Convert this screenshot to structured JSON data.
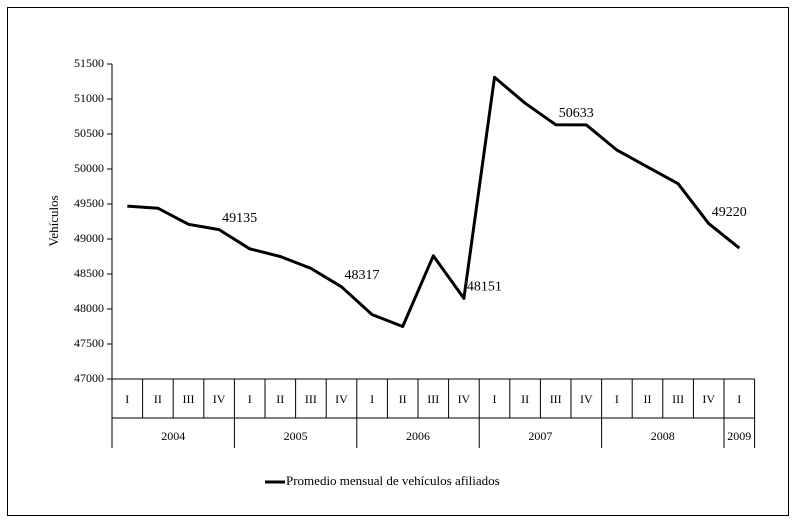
{
  "chart_data": {
    "type": "line",
    "y_label": "Vehículos",
    "groups": [
      {
        "label": "2004",
        "categories": [
          "I",
          "II",
          "III",
          "IV"
        ]
      },
      {
        "label": "2005",
        "categories": [
          "I",
          "II",
          "III",
          "IV"
        ]
      },
      {
        "label": "2006",
        "categories": [
          "I",
          "II",
          "III",
          "IV"
        ]
      },
      {
        "label": "2007",
        "categories": [
          "I",
          "II",
          "III",
          "IV"
        ]
      },
      {
        "label": "2008",
        "categories": [
          "I",
          "II",
          "III",
          "IV"
        ]
      },
      {
        "label": "2009",
        "categories": [
          "I"
        ]
      }
    ],
    "series": [
      {
        "name": "Promedio mensual de vehículos afiliados",
        "color": "#000000",
        "values": [
          49470,
          49440,
          49210,
          49135,
          48860,
          48750,
          48580,
          48317,
          47920,
          47750,
          48760,
          48151,
          51310,
          50940,
          50633,
          50630,
          50270,
          50030,
          49790,
          49220,
          48870
        ],
        "value_labels": [
          null,
          null,
          null,
          "49135",
          null,
          null,
          null,
          "48317",
          null,
          null,
          null,
          "48151",
          null,
          null,
          "50633",
          null,
          null,
          null,
          null,
          "49220",
          null
        ]
      }
    ],
    "ylim": [
      47000,
      51500
    ],
    "yticks": [
      47000,
      47500,
      48000,
      48500,
      49000,
      49500,
      50000,
      50500,
      51000,
      51500
    ],
    "grid": false,
    "legend": "bottom"
  }
}
